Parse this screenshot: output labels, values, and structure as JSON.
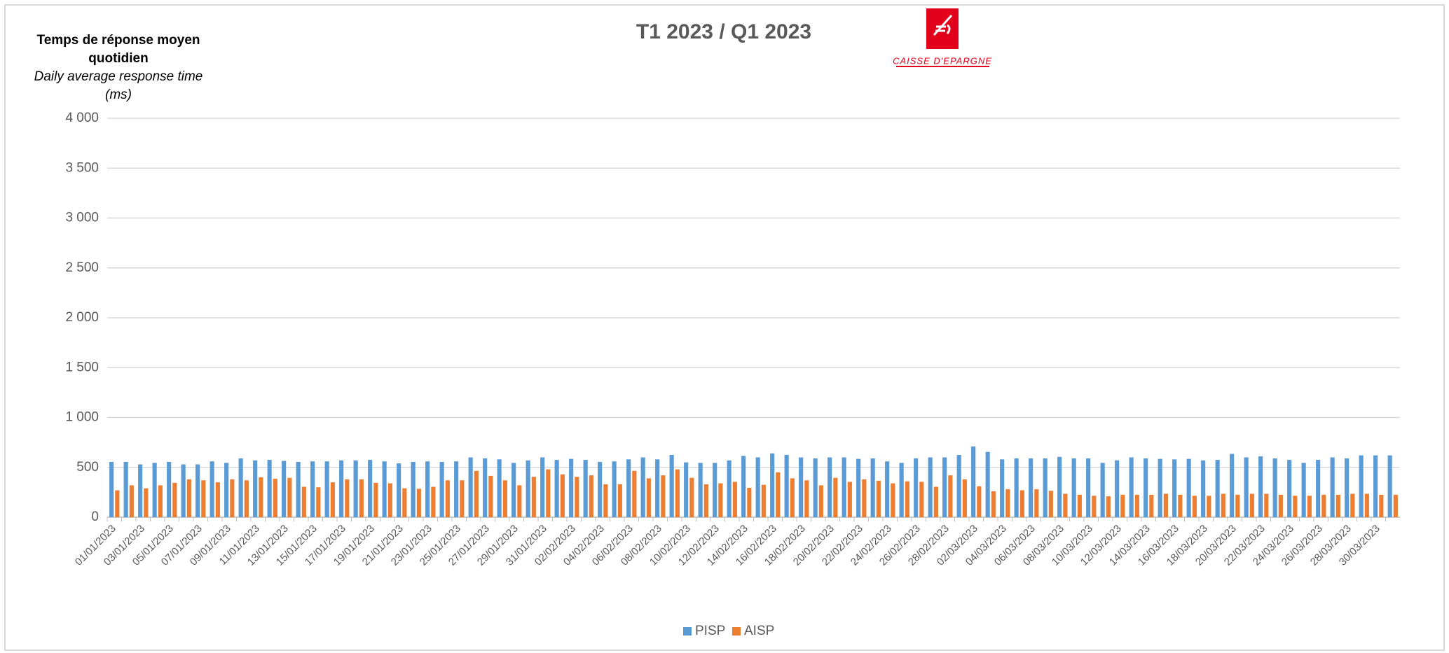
{
  "chart_data": {
    "type": "bar",
    "title": "T1 2023 / Q1 2023",
    "logo_text": "CAISSE D'EPARGNE",
    "ylabel_lines": [
      "Temps de réponse moyen",
      "quotidien"
    ],
    "ylabel_sub_lines": [
      "Daily average response time",
      "(ms)"
    ],
    "categories": [
      "01/01/2023",
      null,
      "03/01/2023",
      null,
      "05/01/2023",
      null,
      "07/01/2023",
      null,
      "09/01/2023",
      null,
      "11/01/2023",
      null,
      "13/01/2023",
      null,
      "15/01/2023",
      null,
      "17/01/2023",
      null,
      "19/01/2023",
      null,
      "21/01/2023",
      null,
      "23/01/2023",
      null,
      "25/01/2023",
      null,
      "27/01/2023",
      null,
      "29/01/2023",
      null,
      "31/01/2023",
      null,
      "02/02/2023",
      null,
      "04/02/2023",
      null,
      "06/02/2023",
      null,
      "08/02/2023",
      null,
      "10/02/2023",
      null,
      "12/02/2023",
      null,
      "14/02/2023",
      null,
      "16/02/2023",
      null,
      "18/02/2023",
      null,
      "20/02/2023",
      null,
      "22/02/2023",
      null,
      "24/02/2023",
      null,
      "26/02/2023",
      null,
      "28/02/2023",
      null,
      "02/03/2023",
      null,
      "04/03/2023",
      null,
      "06/03/2023",
      null,
      "08/03/2023",
      null,
      "10/03/2023",
      null,
      "12/03/2023",
      null,
      "14/03/2023",
      null,
      "16/03/2023",
      null,
      "18/03/2023",
      null,
      "20/03/2023",
      null,
      "22/03/2023",
      null,
      "24/03/2023",
      null,
      "26/03/2023",
      null,
      "28/03/2023",
      null,
      "30/03/2023",
      null
    ],
    "series": [
      {
        "name": "PISP",
        "color": "#5b9bd5",
        "values": [
          555,
          555,
          530,
          545,
          555,
          530,
          530,
          560,
          545,
          590,
          570,
          575,
          565,
          555,
          560,
          560,
          570,
          570,
          575,
          560,
          540,
          555,
          560,
          555,
          560,
          600,
          590,
          580,
          545,
          570,
          600,
          575,
          585,
          575,
          555,
          560,
          580,
          600,
          580,
          625,
          550,
          545,
          545,
          570,
          615,
          600,
          640,
          625,
          600,
          590,
          600,
          600,
          585,
          590,
          560,
          545,
          590,
          600,
          600,
          625,
          710,
          655,
          580,
          590,
          590,
          590,
          605,
          590,
          590,
          545,
          570,
          600,
          590,
          585,
          580,
          585,
          570,
          575,
          635,
          600,
          610,
          590,
          575,
          545,
          575,
          600,
          590,
          620,
          620,
          620
        ]
      },
      {
        "name": "AISP",
        "color": "#ed7d31",
        "values": [
          270,
          320,
          290,
          320,
          345,
          380,
          370,
          350,
          380,
          370,
          400,
          385,
          395,
          305,
          300,
          350,
          380,
          380,
          345,
          340,
          290,
          285,
          305,
          370,
          370,
          465,
          415,
          370,
          320,
          405,
          480,
          430,
          405,
          420,
          330,
          330,
          465,
          390,
          420,
          480,
          395,
          330,
          340,
          355,
          295,
          325,
          450,
          390,
          370,
          320,
          395,
          355,
          380,
          365,
          340,
          360,
          355,
          305,
          420,
          380,
          310,
          260,
          280,
          270,
          280,
          265,
          235,
          225,
          215,
          210,
          225,
          225,
          225,
          235,
          225,
          215,
          215,
          235,
          225,
          235,
          235,
          225,
          215,
          215,
          225,
          225,
          235,
          235,
          225,
          225
        ]
      }
    ],
    "ylim": [
      0,
      4000
    ],
    "yticks": [
      0,
      500,
      {
        "value": 1000,
        "label": "1 000"
      },
      {
        "value": 1500,
        "label": "1 500"
      },
      {
        "value": 2000,
        "label": "2 000"
      },
      {
        "value": 2500,
        "label": "2 500"
      },
      {
        "value": 3000,
        "label": "3 000"
      },
      {
        "value": 3500,
        "label": "3 500"
      },
      {
        "value": 4000,
        "label": "4 000"
      }
    ],
    "grid": true,
    "legend": "bottom"
  }
}
